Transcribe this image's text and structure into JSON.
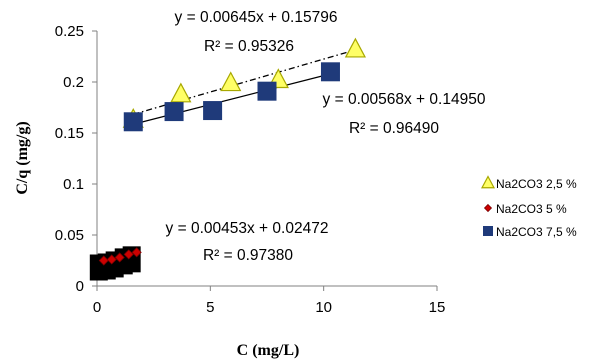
{
  "chart_data": {
    "type": "scatter",
    "xlabel": "C (mg/L)",
    "ylabel": "C/q (mg/g)",
    "xlim": [
      0,
      15
    ],
    "ylim": [
      0,
      0.25
    ],
    "x_ticks": [
      0,
      5,
      10,
      15
    ],
    "y_ticks": [
      0,
      0.05,
      0.1,
      0.15,
      0.2,
      0.25
    ],
    "x_tick_labels": [
      "0",
      "5",
      "10",
      "15"
    ],
    "y_tick_labels": [
      "0",
      "0.05",
      "0.1",
      "0.15",
      "0.2",
      "0.25"
    ],
    "grid": false,
    "legend_position": "right",
    "series": [
      {
        "name": "Na2CO3 2,5 %",
        "marker": "triangle",
        "color": "#ffff66",
        "edge_color": "#a8a800",
        "points": [
          [
            1.6,
            0.163
          ],
          [
            3.7,
            0.188
          ],
          [
            5.9,
            0.199
          ],
          [
            8.0,
            0.202
          ],
          [
            11.4,
            0.232
          ]
        ],
        "trendline": {
          "slope": 0.00645,
          "intercept": 0.15796,
          "x_range": [
            1.6,
            11.4
          ],
          "style": "dash-dot"
        },
        "equation": "y = 0.00645x + 0.15796",
        "r2": "R² = 0.95326"
      },
      {
        "name": "Na2CO3 5 %",
        "marker": "diamond",
        "color": "#cc0000",
        "points": [
          [
            0.3,
            0.025
          ],
          [
            0.65,
            0.026
          ],
          [
            1.0,
            0.028
          ],
          [
            1.4,
            0.031
          ],
          [
            1.75,
            0.033
          ]
        ],
        "trendline": {
          "slope": 0.00453,
          "intercept": 0.02472,
          "x_range": [
            0.3,
            1.75
          ],
          "style": "solid"
        },
        "equation": "y = 0.00453x + 0.02472",
        "r2": "R² = 0.97380"
      },
      {
        "name": "Na2CO3 7,5 %",
        "marker": "square",
        "color": "#1f3a7a",
        "points": [
          [
            1.6,
            0.161
          ],
          [
            3.4,
            0.171
          ],
          [
            5.1,
            0.172
          ],
          [
            7.5,
            0.191
          ],
          [
            10.3,
            0.21
          ]
        ],
        "trendline": {
          "slope": 0.00568,
          "intercept": 0.1495,
          "x_range": [
            1.6,
            10.3
          ],
          "style": "solid"
        },
        "equation": "y = 0.00568x + 0.14950",
        "r2": "R² = 0.96490"
      }
    ]
  }
}
